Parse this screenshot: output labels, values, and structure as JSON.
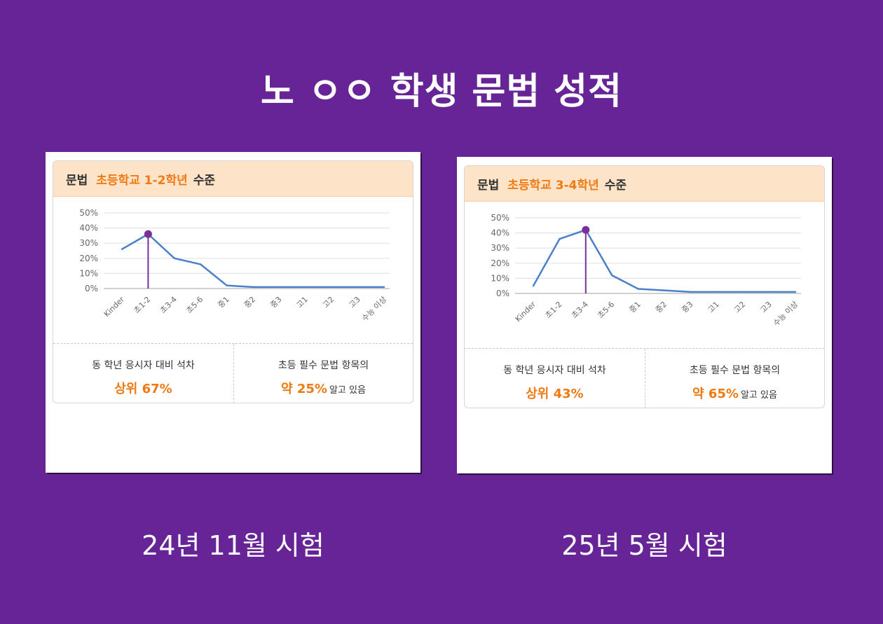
{
  "title": "노 ㅇㅇ 학생 문법 성적",
  "colors": {
    "background": "#662496",
    "accent": "#ef7a12",
    "line": "#4a7fcb",
    "marker": "#7b2f9b",
    "header_bg": "#fde4c9"
  },
  "reports": [
    {
      "header": {
        "subject": "문법",
        "level": "초등학교 1-2학년",
        "suffix": "수준"
      },
      "stats": {
        "rank_label": "동 학년 응시자 대비 석차",
        "rank_value": "상위 67%",
        "know_label": "초등 필수 문법 항목의",
        "know_value": "약 25%",
        "know_suffix": "알고 있음"
      },
      "caption": "24년 11월 시험"
    },
    {
      "header": {
        "subject": "문법",
        "level": "초등학교 3-4학년",
        "suffix": "수준"
      },
      "stats": {
        "rank_label": "동 학년 응시자 대비 석차",
        "rank_value": "상위 43%",
        "know_label": "초등 필수 문법 항목의",
        "know_value": "약 65%",
        "know_suffix": "알고 있음"
      },
      "caption": "25년 5월 시험"
    }
  ],
  "chart_data": [
    {
      "type": "line",
      "categories": [
        "Kinder",
        "초1-2",
        "초3-4",
        "초5-6",
        "중1",
        "중2",
        "중3",
        "고1",
        "고2",
        "고3",
        "수능 이상"
      ],
      "series": [
        {
          "values": [
            26,
            36,
            20,
            16,
            2,
            1,
            1,
            1,
            1,
            1,
            1
          ]
        }
      ],
      "highlight": {
        "category": "초1-2",
        "value": 36
      },
      "yticks": [
        "0%",
        "10%",
        "20%",
        "30%",
        "40%",
        "50%"
      ],
      "ylim": [
        0,
        50
      ],
      "grid": true
    },
    {
      "type": "line",
      "categories": [
        "Kinder",
        "초1-2",
        "초3-4",
        "초5-6",
        "중1",
        "중2",
        "중3",
        "고1",
        "고2",
        "고3",
        "수능 이상"
      ],
      "series": [
        {
          "values": [
            5,
            36,
            42,
            12,
            3,
            2,
            1,
            1,
            1,
            1,
            1
          ]
        }
      ],
      "highlight": {
        "category": "초3-4",
        "value": 42
      },
      "yticks": [
        "0%",
        "10%",
        "20%",
        "30%",
        "40%",
        "50%"
      ],
      "ylim": [
        0,
        50
      ],
      "grid": true
    }
  ]
}
